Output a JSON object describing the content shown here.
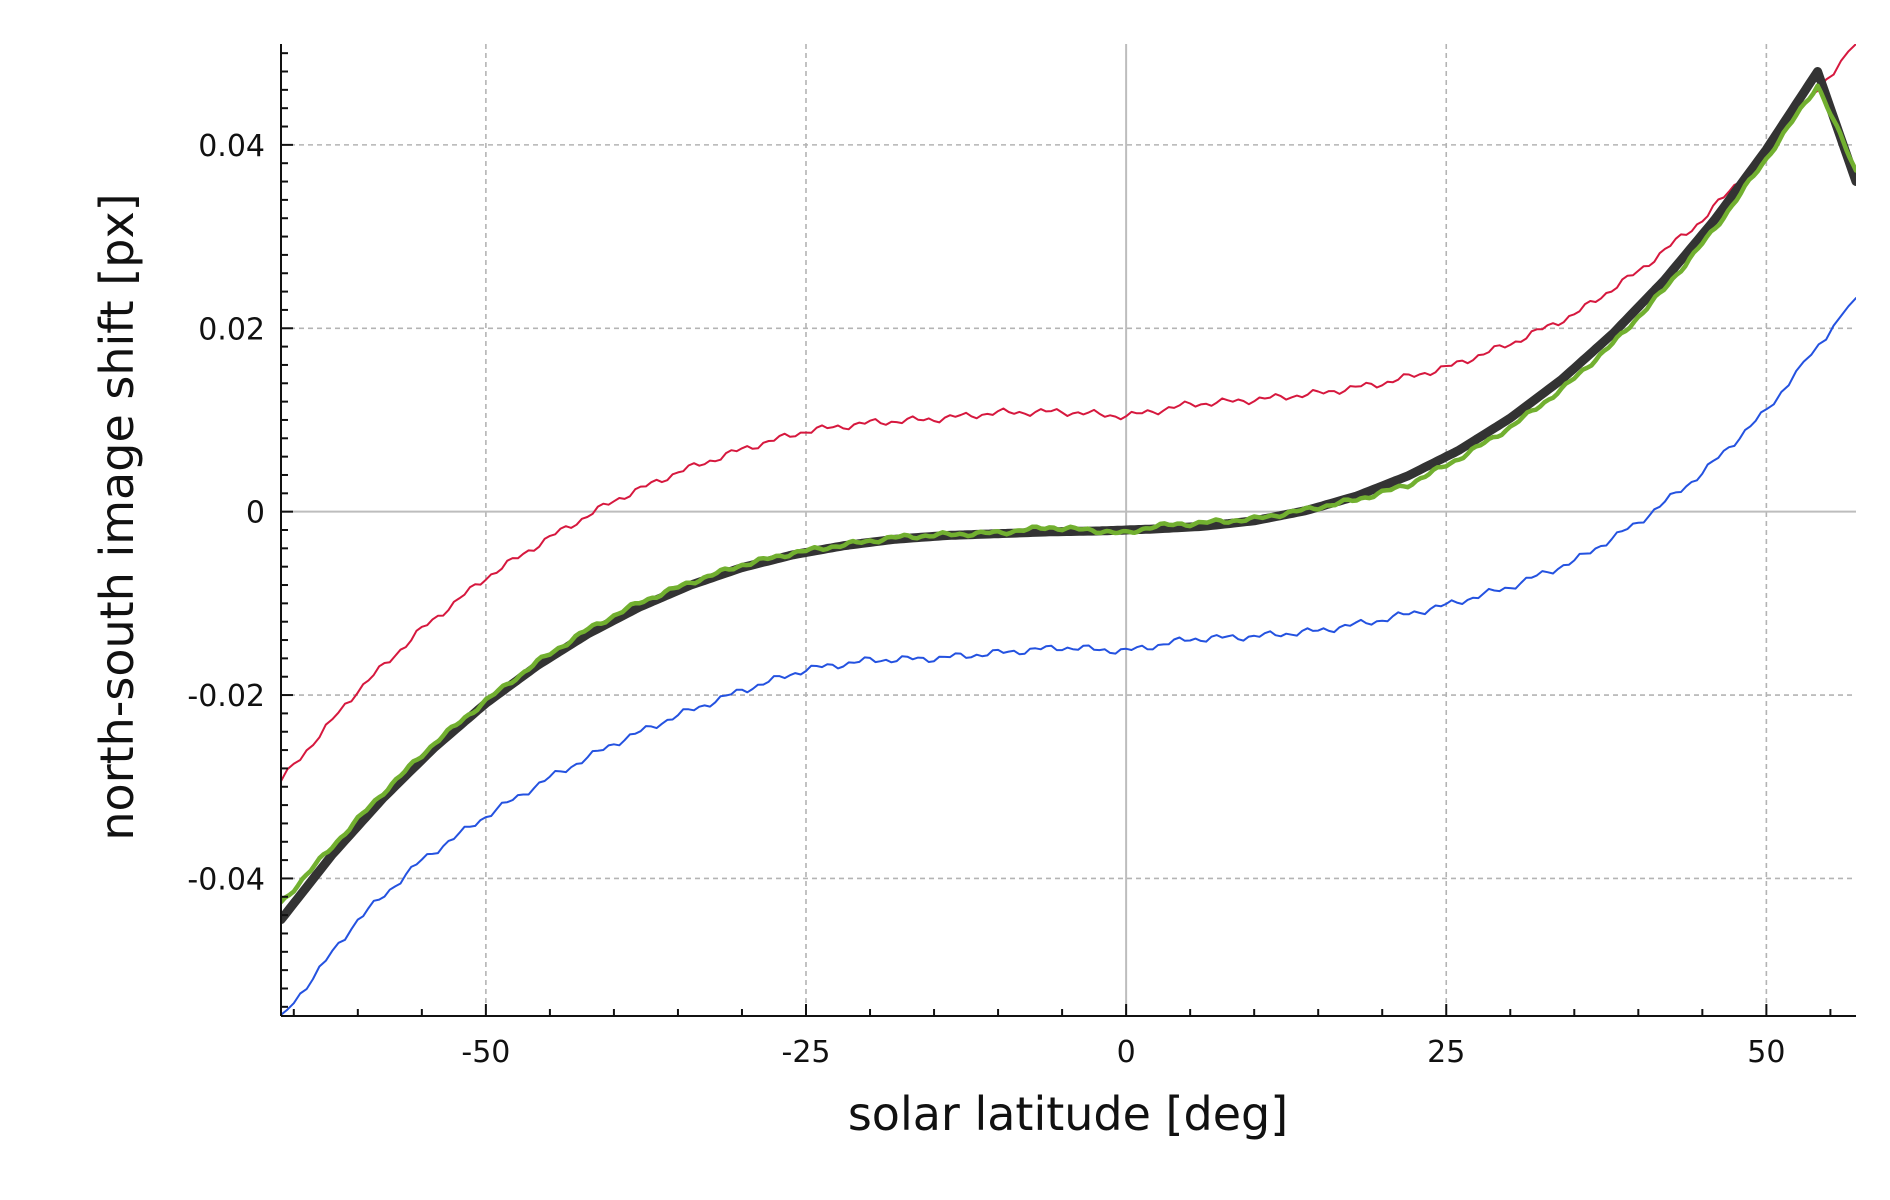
{
  "chart_data": {
    "type": "line",
    "title": "",
    "xlabel": "solar latitude [deg]",
    "ylabel": "north-south image shift [px]",
    "xlim": [
      -66,
      57
    ],
    "ylim": [
      -0.055,
      0.051
    ],
    "x_ticks": [
      {
        "value": -50,
        "label": "-50"
      },
      {
        "value": -25,
        "label": "-25"
      },
      {
        "value": 0,
        "label": "0"
      },
      {
        "value": 25,
        "label": "25"
      },
      {
        "value": 50,
        "label": "50"
      }
    ],
    "y_ticks": [
      {
        "value": -0.04,
        "label": "-0.04"
      },
      {
        "value": -0.02,
        "label": "-0.02"
      },
      {
        "value": 0,
        "label": "0"
      },
      {
        "value": 0.02,
        "label": "0.02"
      },
      {
        "value": 0.04,
        "label": "0.04"
      }
    ],
    "grid": true,
    "legend": "none",
    "series": [
      {
        "color": "#d6183e",
        "style": "thin",
        "x": [
          -66,
          -60,
          -55,
          -50,
          -45,
          -40,
          -35,
          -30,
          -25,
          -20,
          -15,
          -10,
          -5,
          0,
          5,
          10,
          15,
          20,
          25,
          30,
          35,
          40,
          45,
          50,
          57
        ],
        "y": [
          -0.0293,
          -0.0195,
          -0.0128,
          -0.0072,
          -0.0028,
          0.0012,
          0.0043,
          0.0068,
          0.0088,
          0.0097,
          0.0101,
          0.0108,
          0.0109,
          0.0104,
          0.0117,
          0.0122,
          0.0129,
          0.014,
          0.0157,
          0.0183,
          0.0215,
          0.0262,
          0.0318,
          0.0393,
          0.051
        ]
      },
      {
        "color": "#2452e0",
        "style": "thin",
        "x": [
          -66,
          -60,
          -55,
          -50,
          -45,
          -40,
          -35,
          -30,
          -25,
          -20,
          -15,
          -10,
          -5,
          0,
          5,
          10,
          15,
          20,
          25,
          30,
          35,
          40,
          45,
          50,
          57
        ],
        "y": [
          -0.0553,
          -0.0445,
          -0.038,
          -0.0332,
          -0.029,
          -0.0253,
          -0.0222,
          -0.0195,
          -0.0172,
          -0.0162,
          -0.016,
          -0.0154,
          -0.0148,
          -0.0152,
          -0.0139,
          -0.0136,
          -0.013,
          -0.0118,
          -0.0102,
          -0.0082,
          -0.0054,
          -0.0012,
          0.0042,
          0.011,
          0.0233
        ]
      },
      {
        "color": "#333333",
        "style": "thick",
        "x": [
          -66,
          -62,
          -58,
          -54,
          -50,
          -46,
          -42,
          -38,
          -34,
          -30,
          -26,
          -22,
          -18,
          -14,
          -10,
          -6,
          -2,
          0,
          2,
          6,
          10,
          14,
          18,
          22,
          26,
          30,
          34,
          38,
          42,
          46,
          50,
          54,
          57
        ],
        "y": [
          -0.0445,
          -0.0374,
          -0.0312,
          -0.0257,
          -0.0209,
          -0.0168,
          -0.0133,
          -0.0104,
          -0.008,
          -0.0061,
          -0.0047,
          -0.0037,
          -0.003,
          -0.0026,
          -0.0024,
          -0.0022,
          -0.0021,
          -0.002,
          -0.0019,
          -0.0016,
          -0.001,
          0.0001,
          0.0017,
          0.0039,
          0.0067,
          0.0102,
          0.0144,
          0.0194,
          0.0252,
          0.0319,
          0.0395,
          0.048,
          0.036
        ]
      },
      {
        "color": "#72b030",
        "style": "medium",
        "x": [
          -66,
          -62,
          -58,
          -54,
          -50,
          -46,
          -42,
          -38,
          -34,
          -30,
          -26,
          -22,
          -18,
          -14,
          -10,
          -6,
          -2,
          0,
          2,
          6,
          10,
          14,
          18,
          22,
          26,
          30,
          34,
          38,
          42,
          46,
          50,
          54,
          57
        ],
        "y": [
          -0.0427,
          -0.0365,
          -0.0306,
          -0.0252,
          -0.0206,
          -0.0164,
          -0.0128,
          -0.0099,
          -0.0077,
          -0.0058,
          -0.0045,
          -0.0036,
          -0.0028,
          -0.0025,
          -0.0023,
          -0.0017,
          -0.0021,
          -0.0024,
          -0.0016,
          -0.0012,
          -0.0008,
          0.0002,
          0.0013,
          0.0029,
          0.0058,
          0.0092,
          0.0133,
          0.0183,
          0.0242,
          0.0309,
          0.0385,
          0.0465,
          0.0372
        ]
      }
    ]
  }
}
